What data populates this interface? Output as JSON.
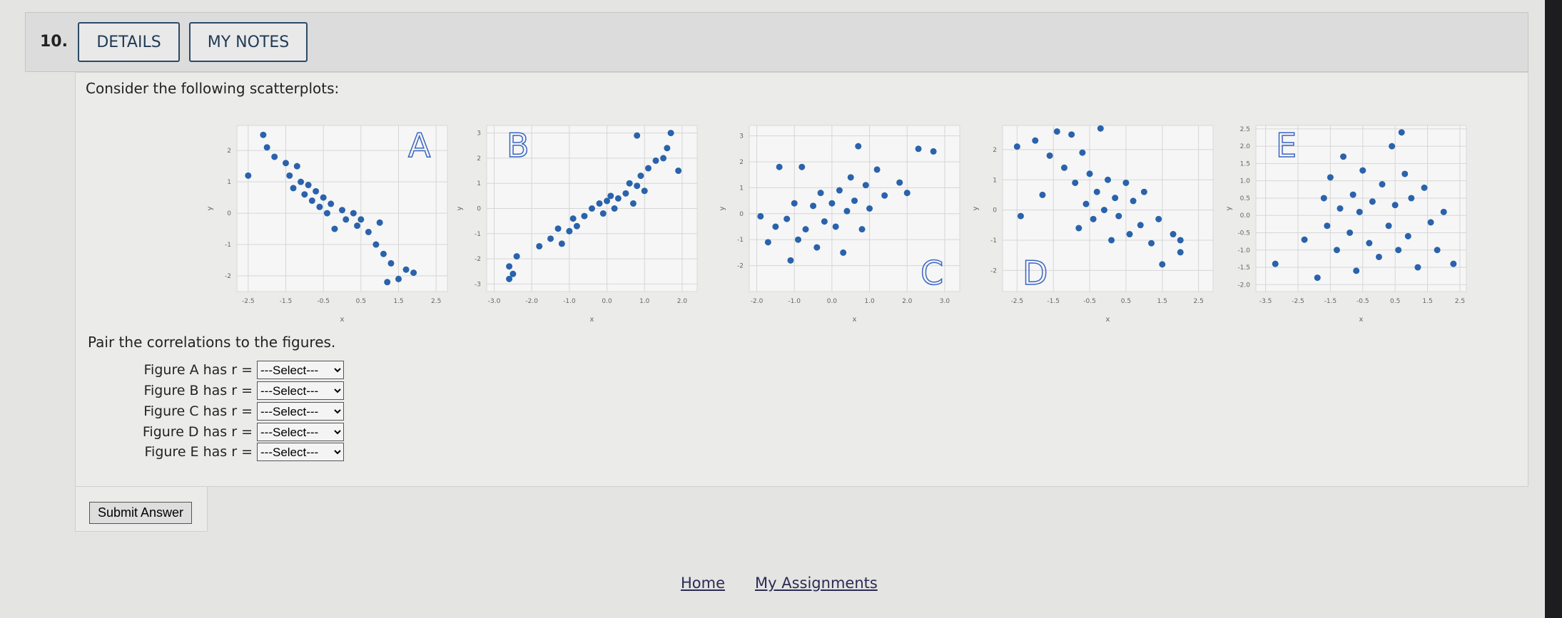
{
  "question": {
    "number": "10.",
    "buttons": [
      "DETAILS",
      "MY NOTES"
    ],
    "prompt": "Consider the following scatterplots:",
    "instruction": "Pair the correlations to the figures.",
    "submit": "Submit Answer"
  },
  "chart_data": [
    {
      "type": "scatter",
      "annotation": "A",
      "annotation_position": "top-right",
      "xlabel": "x",
      "ylabel": "y",
      "color": "#2a62ab",
      "x": [
        -2.5,
        -2.1,
        -2,
        -1.8,
        -1.5,
        -1.4,
        -1.3,
        -1.2,
        -1.1,
        -1,
        -0.9,
        -0.8,
        -0.7,
        -0.6,
        -0.5,
        -0.4,
        -0.3,
        -0.2,
        0,
        0.1,
        0.3,
        0.4,
        0.5,
        0.7,
        0.9,
        1,
        1.1,
        1.3,
        1.5,
        1.7,
        1.9,
        1.2
      ],
      "y": [
        1.2,
        2.5,
        2.1,
        1.8,
        1.6,
        1.2,
        0.8,
        1.5,
        1,
        0.6,
        0.9,
        0.4,
        0.7,
        0.2,
        0.5,
        0,
        0.3,
        -0.5,
        0.1,
        -0.2,
        0,
        -0.4,
        -0.2,
        -0.6,
        -1,
        -0.3,
        -1.3,
        -1.6,
        -2.1,
        -1.8,
        -1.9,
        -2.2
      ],
      "xlim": [
        -2.8,
        2.8
      ],
      "ylim": [
        -2.5,
        2.8
      ],
      "xticks": [
        -2.5,
        -1.5,
        -0.5,
        0.5,
        1.5,
        2.5
      ],
      "yticks": [
        -2,
        -1,
        0,
        1,
        2
      ],
      "grid": true
    },
    {
      "type": "scatter",
      "annotation": "B",
      "annotation_position": "top-left",
      "xlabel": "x",
      "ylabel": "y",
      "color": "#2a62ab",
      "x": [
        -2.6,
        -2.6,
        -2.5,
        -2.4,
        -1.8,
        -1.5,
        -1.3,
        -1.2,
        -1,
        -0.9,
        -0.8,
        -0.6,
        -0.4,
        -0.2,
        -0.1,
        0,
        0.1,
        0.2,
        0.3,
        0.5,
        0.6,
        0.7,
        0.8,
        0.9,
        1,
        1.1,
        1.3,
        1.5,
        1.6,
        1.7,
        1.9,
        0.8
      ],
      "y": [
        -2.8,
        -2.3,
        -2.6,
        -1.9,
        -1.5,
        -1.2,
        -0.8,
        -1.4,
        -0.9,
        -0.4,
        -0.7,
        -0.3,
        0,
        0.2,
        -0.2,
        0.3,
        0.5,
        0,
        0.4,
        0.6,
        1,
        0.2,
        0.9,
        1.3,
        0.7,
        1.6,
        1.9,
        2,
        2.4,
        3,
        1.5,
        2.9
      ],
      "xlim": [
        -3.2,
        2.4
      ],
      "ylim": [
        -3.3,
        3.3
      ],
      "xticks": [
        {
          "value": -3,
          "label": "-3.0"
        },
        {
          "value": -2,
          "label": "-2.0"
        },
        {
          "value": -1,
          "label": "-1.0"
        },
        {
          "value": 0,
          "label": "0.0"
        },
        {
          "value": 1,
          "label": "1.0"
        },
        {
          "value": 2,
          "label": "2.0"
        }
      ],
      "yticks": [
        -3,
        -2,
        -1,
        0,
        1,
        2,
        3
      ],
      "grid": true
    },
    {
      "type": "scatter",
      "annotation": "C",
      "annotation_position": "bottom-right",
      "xlabel": "x",
      "ylabel": "y",
      "color": "#2a62ab",
      "x": [
        -1.9,
        -1.7,
        -1.5,
        -1.4,
        -1.2,
        -1.1,
        -1,
        -0.9,
        -0.8,
        -0.7,
        -0.5,
        -0.4,
        -0.3,
        -0.2,
        0,
        0.1,
        0.2,
        0.3,
        0.4,
        0.5,
        0.6,
        0.7,
        0.8,
        0.9,
        1,
        1.2,
        1.4,
        1.8,
        2,
        2.3,
        2.7
      ],
      "y": [
        -0.1,
        -1.1,
        -0.5,
        1.8,
        -0.2,
        -1.8,
        0.4,
        -1,
        1.8,
        -0.6,
        0.3,
        -1.3,
        0.8,
        -0.3,
        0.4,
        -0.5,
        0.9,
        -1.5,
        0.1,
        1.4,
        0.5,
        2.6,
        -0.6,
        1.1,
        0.2,
        1.7,
        0.7,
        1.2,
        0.8,
        2.5,
        2.4
      ],
      "xlim": [
        -2.2,
        3.4
      ],
      "ylim": [
        -3,
        3.4
      ],
      "xticks": [
        {
          "value": -2,
          "label": "-2.0"
        },
        {
          "value": -1,
          "label": "-1.0"
        },
        {
          "value": 0,
          "label": "0.0"
        },
        {
          "value": 1,
          "label": "1.0"
        },
        {
          "value": 2,
          "label": "2.0"
        },
        {
          "value": 3,
          "label": "3.0"
        }
      ],
      "yticks": [
        -2,
        -1,
        0,
        1,
        2,
        3
      ],
      "grid": true
    },
    {
      "type": "scatter",
      "annotation": "D",
      "annotation_position": "bottom-left",
      "xlabel": "x",
      "ylabel": "y",
      "color": "#2a62ab",
      "x": [
        -2.5,
        -2,
        -1.8,
        -1.6,
        -1.4,
        -1.2,
        -1,
        -0.9,
        -0.8,
        -0.7,
        -0.6,
        -0.5,
        -0.4,
        -0.3,
        -0.2,
        -0.1,
        0,
        0.1,
        0.2,
        0.3,
        0.5,
        0.6,
        0.7,
        0.9,
        1,
        1.2,
        1.4,
        1.5,
        1.8,
        2,
        2,
        -2.4
      ],
      "y": [
        2.1,
        2.3,
        0.5,
        1.8,
        2.6,
        1.4,
        2.5,
        0.9,
        -0.6,
        1.9,
        0.2,
        1.2,
        -0.3,
        0.6,
        2.7,
        0,
        1,
        -1,
        0.4,
        -0.2,
        0.9,
        -0.8,
        0.3,
        -0.5,
        0.6,
        -1.1,
        -0.3,
        -1.8,
        -0.8,
        -1.4,
        -1,
        -0.2
      ],
      "xlim": [
        -2.9,
        2.9
      ],
      "ylim": [
        -2.7,
        2.8
      ],
      "xticks": [
        -2.5,
        -1.5,
        -0.5,
        0.5,
        1.5,
        2.5
      ],
      "yticks": [
        -2,
        -1,
        0,
        1,
        2
      ],
      "grid": true
    },
    {
      "type": "scatter",
      "annotation": "E",
      "annotation_position": "top-left",
      "xlabel": "x",
      "ylabel": "y",
      "color": "#2a62ab",
      "x": [
        -3.2,
        -2.3,
        -1.9,
        -1.7,
        -1.6,
        -1.5,
        -1.3,
        -1.2,
        -1.1,
        -0.9,
        -0.8,
        -0.7,
        -0.6,
        -0.5,
        -0.3,
        -0.2,
        0,
        0.1,
        0.3,
        0.4,
        0.5,
        0.6,
        0.8,
        0.9,
        1,
        1.2,
        1.4,
        1.6,
        1.8,
        2,
        2.3,
        0.7
      ],
      "y": [
        -1.4,
        -0.7,
        -1.8,
        0.5,
        -0.3,
        1.1,
        -1,
        0.2,
        1.7,
        -0.5,
        0.6,
        -1.6,
        0.1,
        1.3,
        -0.8,
        0.4,
        -1.2,
        0.9,
        -0.3,
        2,
        0.3,
        -1,
        1.2,
        -0.6,
        0.5,
        -1.5,
        0.8,
        -0.2,
        -1,
        0.1,
        -1.4,
        2.4
      ],
      "xlim": [
        -3.8,
        2.7
      ],
      "ylim": [
        -2.2,
        2.6
      ],
      "xticks": [
        -3.5,
        -2.5,
        -1.5,
        -0.5,
        0.5,
        1.5,
        2.5
      ],
      "yticks": [
        {
          "value": -2,
          "label": "-2.0"
        },
        -1.5,
        {
          "value": -1,
          "label": "-1.0"
        },
        -0.5,
        {
          "value": 0,
          "label": "0.0"
        },
        0.5,
        {
          "value": 1,
          "label": "1.0"
        },
        1.5,
        {
          "value": 2,
          "label": "2.0"
        },
        2.5
      ],
      "grid": true
    }
  ],
  "selects": [
    {
      "label": "Figure A has r =",
      "placeholder": "---Select---"
    },
    {
      "label": "Figure B has r =",
      "placeholder": "---Select---"
    },
    {
      "label": "Figure C has r =",
      "placeholder": "---Select---"
    },
    {
      "label": "Figure D has r =",
      "placeholder": "---Select---"
    },
    {
      "label": "Figure E has r =",
      "placeholder": "---Select---"
    }
  ],
  "footer_links": [
    "Home",
    "My Assignments"
  ]
}
